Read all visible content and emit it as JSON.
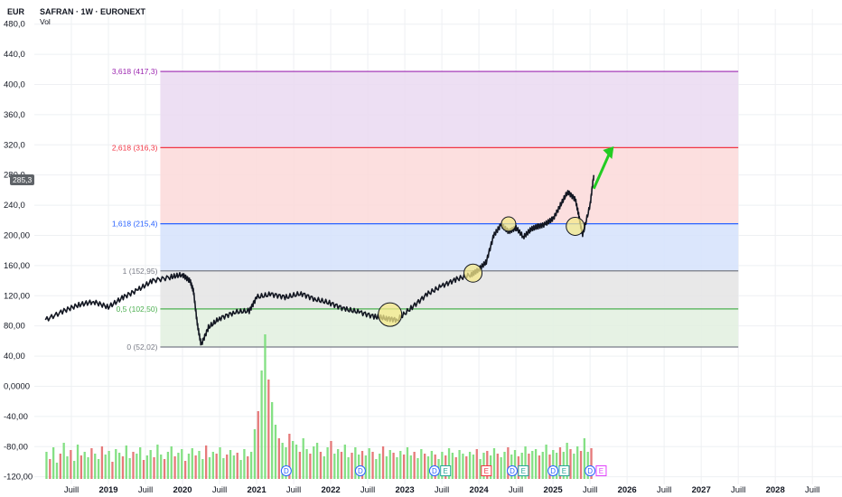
{
  "header": {
    "currency": "EUR",
    "title": "SAFRAN · 1W · EURONEXT",
    "volume_label": "Vol"
  },
  "last_price_label": "285,3",
  "colors": {
    "up": "#26a69a",
    "down": "#ef5350",
    "candle": "#131722",
    "vol_up": "#77dd77",
    "vol_down": "#e36b6b",
    "arrow": "#22cc22",
    "marker_fill": "#f5e98a"
  },
  "chart_data": {
    "type": "line",
    "title": "SAFRAN · 1W · EURONEXT",
    "ylabel": "EUR",
    "ylim": [
      -130,
      500
    ],
    "grid": true,
    "y_ticks": [
      "480,0",
      "440,0",
      "400,0",
      "360,0",
      "320,0",
      "280,0",
      "240,0",
      "200,00",
      "160,00",
      "120,00",
      "80,00",
      "40,00",
      "0,0000",
      "-40,00",
      "-80,00",
      "-120,00"
    ],
    "y_tick_values": [
      480,
      440,
      400,
      360,
      320,
      280,
      240,
      200,
      160,
      120,
      80,
      40,
      0,
      -40,
      -80,
      -120
    ],
    "x_ticks": [
      "Juill",
      "2019",
      "Juill",
      "2020",
      "Juill",
      "2021",
      "Juill",
      "2022",
      "Juill",
      "2023",
      "Juill",
      "2024",
      "Juill",
      "2025",
      "Juill",
      "2026",
      "Juill",
      "2027",
      "Juill",
      "2028",
      "Juill"
    ],
    "x_tick_dates": [
      2018.5,
      2019.0,
      2019.5,
      2020.0,
      2020.5,
      2021.0,
      2021.5,
      2022.0,
      2022.5,
      2023.0,
      2023.5,
      2024.0,
      2024.5,
      2025.0,
      2025.5,
      2026.0,
      2026.5,
      2027.0,
      2027.5,
      2028.0,
      2028.5
    ],
    "price_series": {
      "name": "SAFRAN",
      "x": [
        2018.15,
        2018.4,
        2018.6,
        2018.8,
        2019.0,
        2019.2,
        2019.4,
        2019.6,
        2019.85,
        2020.0,
        2020.1,
        2020.15,
        2020.2,
        2020.25,
        2020.35,
        2020.5,
        2020.7,
        2020.9,
        2021.0,
        2021.2,
        2021.4,
        2021.6,
        2021.8,
        2022.0,
        2022.2,
        2022.4,
        2022.6,
        2022.75,
        2022.9,
        2023.1,
        2023.3,
        2023.5,
        2023.7,
        2023.9,
        2024.0,
        2024.1,
        2024.2,
        2024.3,
        2024.4,
        2024.5,
        2024.6,
        2024.7,
        2024.8,
        2024.9,
        2025.0,
        2025.1,
        2025.2,
        2025.3,
        2025.35,
        2025.4,
        2025.5,
        2025.55
      ],
      "values": [
        88,
        100,
        108,
        112,
        105,
        118,
        128,
        140,
        145,
        148,
        140,
        125,
        82,
        55,
        78,
        90,
        98,
        100,
        118,
        122,
        118,
        123,
        115,
        110,
        102,
        98,
        92,
        90,
        88,
        105,
        122,
        133,
        142,
        148,
        155,
        165,
        200,
        214,
        205,
        210,
        198,
        208,
        212,
        215,
        222,
        240,
        258,
        248,
        225,
        200,
        240,
        280
      ]
    },
    "fib_levels": [
      {
        "label": "0 (52,02)",
        "value": 52.02,
        "color": "#787b86",
        "fill": "#e2f0df"
      },
      {
        "label": "0,5 (102,50)",
        "value": 102.5,
        "color": "#4caf50",
        "fill": "#e4e4e4"
      },
      {
        "label": "1 (152,95)",
        "value": 152.95,
        "color": "#787b86",
        "fill": "#d5e2fc"
      },
      {
        "label": "1,618 (215,4)",
        "value": 215.4,
        "color": "#2962ff",
        "fill": "#fcd9d9"
      },
      {
        "label": "2,618 (316,3)",
        "value": 316.3,
        "color": "#f23645",
        "fill": "#ead9f1"
      },
      {
        "label": "3,618 (417,3)",
        "value": 417.3,
        "color": "#9c27b0",
        "fill": null
      }
    ],
    "fib_range_x": [
      2019.7,
      2027.5
    ],
    "highlights": [
      {
        "x": 2022.8,
        "y": 95
      },
      {
        "x": 2023.92,
        "y": 150
      },
      {
        "x": 2024.4,
        "y": 215
      },
      {
        "x": 2025.3,
        "y": 212
      }
    ],
    "projection_arrow": {
      "from": [
        2025.55,
        262
      ],
      "to": [
        2025.82,
        318
      ]
    },
    "event_markers": [
      {
        "x": 2021.4,
        "label": "D"
      },
      {
        "x": 2022.4,
        "label": "D"
      },
      {
        "x": 2023.4,
        "label": "D"
      },
      {
        "x": 2023.55,
        "label": "E"
      },
      {
        "x": 2024.1,
        "label": "E"
      },
      {
        "x": 2024.45,
        "label": "D"
      },
      {
        "x": 2024.6,
        "label": "E"
      },
      {
        "x": 2025.0,
        "label": "D"
      },
      {
        "x": 2025.15,
        "label": "E"
      },
      {
        "x": 2025.5,
        "label": "D"
      },
      {
        "x": 2025.65,
        "label": "E"
      }
    ],
    "volume_series": {
      "x_start": 2018.15,
      "x_end": 2025.55,
      "values": [
        30,
        22,
        35,
        18,
        28,
        40,
        25,
        32,
        20,
        38,
        26,
        30,
        24,
        34,
        28,
        22,
        36,
        27,
        31,
        19,
        33,
        29,
        25,
        37,
        23,
        30,
        28,
        35,
        21,
        26,
        32,
        24,
        38,
        27,
        22,
        30,
        36,
        25,
        29,
        33,
        20,
        28,
        34,
        26,
        31,
        22,
        37,
        24,
        30,
        28,
        35,
        23,
        27,
        32,
        26,
        29,
        21,
        33,
        25,
        30,
        55,
        75,
        120,
        160,
        110,
        85,
        60,
        45,
        40,
        35,
        50,
        42,
        38,
        30,
        45,
        33,
        28,
        36,
        40,
        30,
        25,
        35,
        42,
        28,
        33,
        30,
        38,
        24,
        29,
        35,
        27,
        31,
        26,
        34,
        30,
        22,
        28,
        36,
        25,
        32,
        29,
        24,
        31,
        27,
        35,
        26,
        30,
        23,
        33,
        28,
        25,
        31,
        27,
        22,
        30,
        26,
        34,
        29,
        24,
        32,
        28,
        25,
        30,
        27,
        33,
        22,
        29,
        31,
        26,
        34,
        28,
        24,
        30,
        35,
        27,
        32,
        25,
        29,
        36,
        28,
        31,
        33,
        26,
        30,
        38,
        27,
        32,
        29,
        35,
        30,
        40,
        33,
        28,
        36,
        31,
        45,
        30,
        34
      ]
    }
  }
}
